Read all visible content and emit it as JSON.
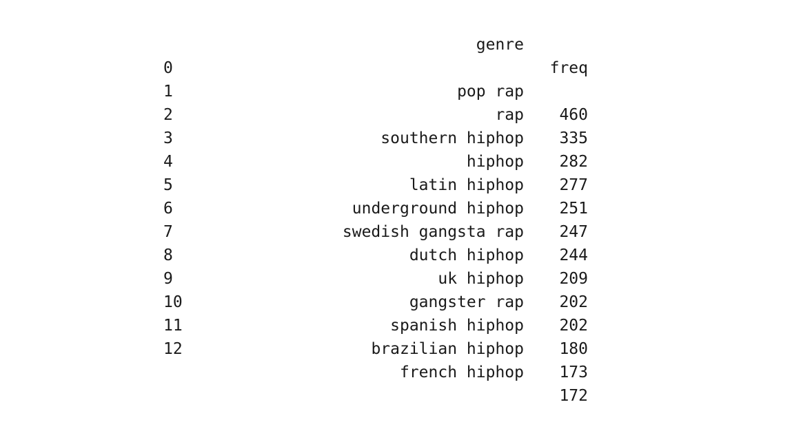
{
  "table": {
    "columns": [
      "genre",
      "freq"
    ],
    "rows": [
      {
        "index": "0",
        "genre": "pop rap",
        "freq": "460"
      },
      {
        "index": "1",
        "genre": "rap",
        "freq": "335"
      },
      {
        "index": "2",
        "genre": "southern hiphop",
        "freq": "282"
      },
      {
        "index": "3",
        "genre": "hiphop",
        "freq": "277"
      },
      {
        "index": "4",
        "genre": "latin hiphop",
        "freq": "251"
      },
      {
        "index": "5",
        "genre": "underground hiphop",
        "freq": "247"
      },
      {
        "index": "6",
        "genre": "swedish gangsta rap",
        "freq": "244"
      },
      {
        "index": "7",
        "genre": "dutch hiphop",
        "freq": "209"
      },
      {
        "index": "8",
        "genre": "uk hiphop",
        "freq": "202"
      },
      {
        "index": "9",
        "genre": "gangster rap",
        "freq": "202"
      },
      {
        "index": "10",
        "genre": "spanish hiphop",
        "freq": "180"
      },
      {
        "index": "11",
        "genre": "brazilian hiphop",
        "freq": "173"
      },
      {
        "index": "12",
        "genre": "french hiphop",
        "freq": "172"
      }
    ]
  }
}
